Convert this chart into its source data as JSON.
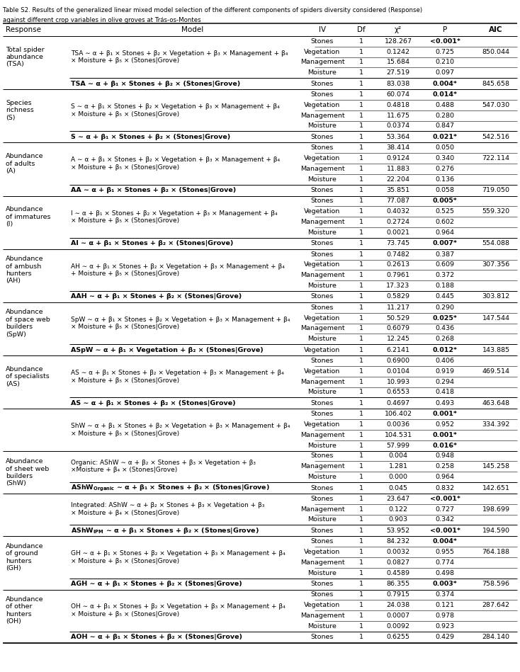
{
  "title_line1": "Table S2. Results of the generalized linear mixed model selection of the different components of spiders diversity considered (Response)",
  "title_line2": "against different crop variables in olive groves at Trás-os-Montes",
  "col_headers": [
    "Response",
    "Model",
    "IV",
    "Df",
    "χ²",
    "P",
    "AIC"
  ],
  "rows": [
    {
      "response": "Total spider\nabundance\n(TSA)",
      "model": "TSA ∼ α + β₁ × Stones + β₂ × Vegetation + β₃ × Management + β₄\n× Moisture + β₅ × (Stones|Grove)",
      "subrows": [
        {
          "iv": "Stones",
          "df": "1",
          "chi2": "128.267",
          "p": "<0.001*",
          "p_bold": true
        },
        {
          "iv": "Vegetation",
          "df": "1",
          "chi2": "0.1242",
          "p": "0.725",
          "p_bold": false,
          "aic": "850.044"
        },
        {
          "iv": "Management",
          "df": "1",
          "chi2": "15.684",
          "p": "0.210",
          "p_bold": false
        },
        {
          "iv": "Moisture",
          "df": "1",
          "chi2": "27.519",
          "p": "0.097",
          "p_bold": false
        }
      ],
      "sel_model": "TSA ∼ α + β₁ × Stones + β₂ × (Stones|Grove)",
      "sel_iv": "Stones",
      "sel_df": "1",
      "sel_chi2": "83.038",
      "sel_p": "0.004*",
      "sel_p_bold": true,
      "sel_aic": "845.658"
    },
    {
      "response": "Species\nrichness\n(S)",
      "model": "S ∼ α + β₁ × Stones + β₂ × Vegetation + β₃ × Management + β₄\n× Moisture + β₅ × (Stones|Grove)",
      "subrows": [
        {
          "iv": "Stones",
          "df": "1",
          "chi2": "60.074",
          "p": "0.014*",
          "p_bold": true
        },
        {
          "iv": "Vegetation",
          "df": "1",
          "chi2": "0.4818",
          "p": "0.488",
          "p_bold": false,
          "aic": "547.030"
        },
        {
          "iv": "Management",
          "df": "1",
          "chi2": "11.675",
          "p": "0.280",
          "p_bold": false
        },
        {
          "iv": "Moisture",
          "df": "1",
          "chi2": "0.0374",
          "p": "0.847",
          "p_bold": false
        }
      ],
      "sel_model": "S ∼ α + β₁ × Stones + β₂ × (Stones|Grove)",
      "sel_iv": "Stones",
      "sel_df": "1",
      "sel_chi2": "53.364",
      "sel_p": "0.021*",
      "sel_p_bold": true,
      "sel_aic": "542.516"
    },
    {
      "response": "Abundance\nof adults\n(A)",
      "model": "A ∼ α + β₁ × Stones + β₂ × Vegetation + β₃ × Management + β₄\n× Moisture + β₅ × (Stones|Grove)",
      "subrows": [
        {
          "iv": "Stones",
          "df": "1",
          "chi2": "38.414",
          "p": "0.050",
          "p_bold": false
        },
        {
          "iv": "Vegetation",
          "df": "1",
          "chi2": "0.9124",
          "p": "0.340",
          "p_bold": false,
          "aic": "722.114"
        },
        {
          "iv": "Management",
          "df": "1",
          "chi2": "11.883",
          "p": "0.276",
          "p_bold": false
        },
        {
          "iv": "Moisture",
          "df": "1",
          "chi2": "22.204",
          "p": "0.136",
          "p_bold": false
        }
      ],
      "sel_model": "AA ∼ α + β₁ × Stones + β₂ × (Stones|Grove)",
      "sel_iv": "Stones",
      "sel_df": "1",
      "sel_chi2": "35.851",
      "sel_p": "0.058",
      "sel_p_bold": false,
      "sel_aic": "719.050"
    },
    {
      "response": "Abundance\nof immatures\n(I)",
      "model": "I ∼ α + β₁ × Stones + β₂ × Vegetation + β₃ × Management + β₄\n× Moisture + β₅ × (Stones|Grove)",
      "subrows": [
        {
          "iv": "Stones",
          "df": "1",
          "chi2": "77.087",
          "p": "0.005*",
          "p_bold": true
        },
        {
          "iv": "Vegetation",
          "df": "1",
          "chi2": "0.4032",
          "p": "0.525",
          "p_bold": false,
          "aic": "559.320"
        },
        {
          "iv": "Management",
          "df": "1",
          "chi2": "0.2724",
          "p": "0.602",
          "p_bold": false
        },
        {
          "iv": "Moisture",
          "df": "1",
          "chi2": "0.0021",
          "p": "0.964",
          "p_bold": false
        }
      ],
      "sel_model": "AI ∼ α + β₁ × Stones + β₂ × (Stones|Grove)",
      "sel_iv": "Stones",
      "sel_df": "1",
      "sel_chi2": "73.745",
      "sel_p": "0.007*",
      "sel_p_bold": true,
      "sel_aic": "554.088"
    },
    {
      "response": "Abundance\nof ambush\nhunters\n(AH)",
      "model": "AH ∼ α + β₁ × Stones + β₂ × Vegetation + β₃ × Management + β₄\n+ Moisture + β₅ × (Stones|Grove)",
      "subrows": [
        {
          "iv": "Stones",
          "df": "1",
          "chi2": "0.7482",
          "p": "0.387",
          "p_bold": false
        },
        {
          "iv": "Vegetation",
          "df": "1",
          "chi2": "0.2613",
          "p": "0.609",
          "p_bold": false,
          "aic": "307.356"
        },
        {
          "iv": "Management",
          "df": "1",
          "chi2": "0.7961",
          "p": "0.372",
          "p_bold": false
        },
        {
          "iv": "Moisture",
          "df": "1",
          "chi2": "17.323",
          "p": "0.188",
          "p_bold": false
        }
      ],
      "sel_model": "AAH ∼ α + β₁ × Stones + β₂ × (Stones|Grove)",
      "sel_iv": "Stones",
      "sel_df": "1",
      "sel_chi2": "0.5829",
      "sel_p": "0.445",
      "sel_p_bold": false,
      "sel_aic": "303.812"
    },
    {
      "response": "Abundance\nof space web\nbuilders\n(SpW)",
      "model": "SpW ∼ α + β₁ × Stones + β₂ × Vegetation + β₃ × Management + β₄\n× Moisture + β₅ × (Stones|Grove)",
      "subrows": [
        {
          "iv": "Stones",
          "df": "1",
          "chi2": "11.217",
          "p": "0.290",
          "p_bold": false
        },
        {
          "iv": "Vegetation",
          "df": "1",
          "chi2": "50.529",
          "p": "0.025*",
          "p_bold": true,
          "aic": "147.544"
        },
        {
          "iv": "Management",
          "df": "1",
          "chi2": "0.6079",
          "p": "0.436",
          "p_bold": false
        },
        {
          "iv": "Moisture",
          "df": "1",
          "chi2": "12.245",
          "p": "0.268",
          "p_bold": false
        }
      ],
      "sel_model": "ASpW ∼ α + β₁ × Vegetation + β₂ × (Stones|Grove)",
      "sel_iv": "Vegetation",
      "sel_df": "1",
      "sel_chi2": "6.2141",
      "sel_p": "0.012*",
      "sel_p_bold": true,
      "sel_aic": "143.885"
    },
    {
      "response": "Abundance\nof specialists\n(AS)",
      "model": "AS ∼ α + β₁ × Stones + β₂ × Vegetation + β₃ × Management + β₄\n× Moisture + β₅ × (Stones|Grove)",
      "subrows": [
        {
          "iv": "Stones",
          "df": "1",
          "chi2": "0.6900",
          "p": "0.406",
          "p_bold": false
        },
        {
          "iv": "Vegetation",
          "df": "1",
          "chi2": "0.0104",
          "p": "0.919",
          "p_bold": false,
          "aic": "469.514"
        },
        {
          "iv": "Management",
          "df": "1",
          "chi2": "10.993",
          "p": "0.294",
          "p_bold": false
        },
        {
          "iv": "Moisture",
          "df": "1",
          "chi2": "0.6553",
          "p": "0.418",
          "p_bold": false
        }
      ],
      "sel_model": "AS ∼ α + β₁ × Stones + β₂ × (Stones|Grove)",
      "sel_iv": "Stones",
      "sel_df": "1",
      "sel_chi2": "0.4697",
      "sel_p": "0.493",
      "sel_p_bold": false,
      "sel_aic": "463.648"
    },
    {
      "response": "Abundance\nof sheet web\nbuilders\n(ShW)",
      "is_shw": true,
      "shw_full_model": "ShW ∼ α + β₁ × Stones + β₂ × Vegetation + β₃ × Management + β₄\n× Moisture + β₅ × (Stones|Grove)",
      "shw_full_rows": [
        {
          "iv": "Stones",
          "df": "1",
          "chi2": "106.402",
          "p": "0.001*",
          "p_bold": true
        },
        {
          "iv": "Vegetation",
          "df": "1",
          "chi2": "0.0036",
          "p": "0.952",
          "p_bold": false,
          "aic": "334.392"
        },
        {
          "iv": "Management",
          "df": "1",
          "chi2": "104.531",
          "p": "0.001*",
          "p_bold": true
        },
        {
          "iv": "Moisture",
          "df": "1",
          "chi2": "57.999",
          "p": "0.016*",
          "p_bold": true
        }
      ],
      "shw_org_model": "Organic: AShW ∼ α + β₂ × Stones + β₃ × Vegetation + β₃\n×Moisture + β₄ × (Stones|Grove)",
      "shw_org_rows": [
        {
          "iv": "Stones",
          "df": "1",
          "chi2": "0.004",
          "p": "0.948",
          "p_bold": false
        },
        {
          "iv": "Management",
          "df": "1",
          "chi2": "1.281",
          "p": "0.258",
          "p_bold": false,
          "aic": "145.258"
        },
        {
          "iv": "Moisture",
          "df": "1",
          "chi2": "0.000",
          "p": "0.964",
          "p_bold": false
        }
      ],
      "shw_org_sel_model": "AShW$_\\mathregular{Organic}$ ∼ α + β₁ × Stones + β₂ × (Stones|Grove)",
      "shw_org_sel_iv": "Stones",
      "shw_org_sel_df": "1",
      "shw_org_sel_chi2": "0.045",
      "shw_org_sel_p": "0.832",
      "shw_org_sel_p_bold": false,
      "shw_org_sel_aic": "142.651",
      "shw_ipm_model": "Integrated: AShW ∼ α + β₂ × Stones + β₃ × Vegetation + β₃\n× Moisture + β₄ × (Stones|Grove)",
      "shw_ipm_rows": [
        {
          "iv": "Stones",
          "df": "1",
          "chi2": "23.647",
          "p": "<0.001*",
          "p_bold": true
        },
        {
          "iv": "Management",
          "df": "1",
          "chi2": "0.122",
          "p": "0.727",
          "p_bold": false,
          "aic": "198.699"
        },
        {
          "iv": "Moisture",
          "df": "1",
          "chi2": "0.903",
          "p": "0.342",
          "p_bold": false
        }
      ],
      "shw_ipm_sel_model": "AShW$_\\mathregular{IPM}$ ∼ α + β₁ × Stones + β₂ × (Stones|Grove)",
      "shw_ipm_sel_iv": "Stones",
      "shw_ipm_sel_df": "1",
      "shw_ipm_sel_chi2": "53.952",
      "shw_ipm_sel_p": "<0.001*",
      "shw_ipm_sel_p_bold": true,
      "shw_ipm_sel_aic": "194.590"
    },
    {
      "response": "Abundance\nof ground\nhunters\n(GH)",
      "model": "GH ∼ α + β₁ × Stones + β₂ × Vegetation + β₃ × Management + β₄\n× Moisture + β₅ × (Stones|Grove)",
      "subrows": [
        {
          "iv": "Stones",
          "df": "1",
          "chi2": "84.232",
          "p": "0.004*",
          "p_bold": true
        },
        {
          "iv": "Vegetation",
          "df": "1",
          "chi2": "0.0032",
          "p": "0.955",
          "p_bold": false,
          "aic": "764.188"
        },
        {
          "iv": "Management",
          "df": "1",
          "chi2": "0.0827",
          "p": "0.774",
          "p_bold": false
        },
        {
          "iv": "Moisture",
          "df": "1",
          "chi2": "0.4589",
          "p": "0.498",
          "p_bold": false
        }
      ],
      "sel_model": "AGH ∼ α + β₁ × Stones + β₂ × (Stones|Grove)",
      "sel_iv": "Stones",
      "sel_df": "1",
      "sel_chi2": "86.355",
      "sel_p": "0.003*",
      "sel_p_bold": true,
      "sel_aic": "758.596"
    },
    {
      "response": "Abundance\nof other\nhunters\n(OH)",
      "model": "OH ∼ α + β₁ × Stones + β₂ × Vegetation + β₃ × Management + β₄\n× Moisture + β₅ × (Stones|Grove)",
      "subrows": [
        {
          "iv": "Stones",
          "df": "1",
          "chi2": "0.7915",
          "p": "0.374",
          "p_bold": false
        },
        {
          "iv": "Vegetation",
          "df": "1",
          "chi2": "24.038",
          "p": "0.121",
          "p_bold": false,
          "aic": "287.642"
        },
        {
          "iv": "Management",
          "df": "1",
          "chi2": "0.0007",
          "p": "0.978",
          "p_bold": false
        },
        {
          "iv": "Moisture",
          "df": "1",
          "chi2": "0.0092",
          "p": "0.923",
          "p_bold": false
        }
      ],
      "sel_model": "AOH ∼ α + β₁ × Stones + β₂ × (Stones|Grove)",
      "sel_iv": "Stones",
      "sel_df": "1",
      "sel_chi2": "0.6255",
      "sel_p": "0.429",
      "sel_p_bold": false,
      "sel_aic": "284.140"
    }
  ]
}
